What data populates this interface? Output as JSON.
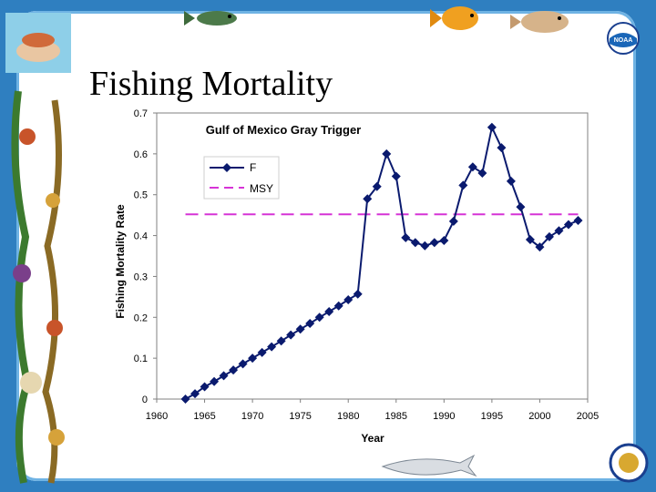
{
  "slide": {
    "title": "Fishing Mortality",
    "colors": {
      "background": "#2f7fc0",
      "panel": "#ffffff",
      "series_f": "#0a1a6e",
      "series_msy": "#d633d6"
    },
    "icons": [
      "noaa-logo-icon",
      "commerce-seal-icon",
      "fish-icon",
      "dolphin-icon",
      "hands-holding-fish-icon"
    ]
  },
  "chart_data": {
    "type": "line",
    "title": "Gulf of Mexico Gray Trigger",
    "xlabel": "Year",
    "ylabel": "Fishing Mortality Rate",
    "xlim": [
      1960,
      2005
    ],
    "ylim": [
      0,
      0.7
    ],
    "xticks": [
      1960,
      1965,
      1970,
      1975,
      1980,
      1985,
      1990,
      1995,
      2000,
      2005
    ],
    "yticks": [
      0,
      0.1,
      0.2,
      0.3,
      0.4,
      0.5,
      0.6,
      0.7
    ],
    "ytick_labels": [
      "0",
      "0.1",
      "0.2",
      "0.3",
      "0.4",
      "0.5",
      "0.6",
      "0.7"
    ],
    "grid": false,
    "legend_position": "top-left",
    "series": [
      {
        "name": "F",
        "style": "line-diamond",
        "x": [
          1963,
          1964,
          1965,
          1966,
          1967,
          1968,
          1969,
          1970,
          1971,
          1972,
          1973,
          1974,
          1975,
          1976,
          1977,
          1978,
          1979,
          1980,
          1981,
          1982,
          1983,
          1984,
          1985,
          1986,
          1987,
          1988,
          1989,
          1990,
          1991,
          1992,
          1993,
          1994,
          1995,
          1996,
          1997,
          1998,
          1999,
          2000,
          2001,
          2002,
          2003,
          2004
        ],
        "values": [
          0.0,
          0.013,
          0.03,
          0.043,
          0.057,
          0.071,
          0.086,
          0.1,
          0.114,
          0.128,
          0.142,
          0.157,
          0.171,
          0.185,
          0.2,
          0.214,
          0.228,
          0.243,
          0.257,
          0.49,
          0.52,
          0.6,
          0.545,
          0.395,
          0.383,
          0.375,
          0.383,
          0.388,
          0.435,
          0.523,
          0.568,
          0.553,
          0.665,
          0.615,
          0.533,
          0.47,
          0.39,
          0.372,
          0.397,
          0.412,
          0.427,
          0.437
        ]
      },
      {
        "name": "MSY",
        "style": "dashed",
        "x": [
          1963,
          2004
        ],
        "values": [
          0.452,
          0.452
        ]
      }
    ]
  }
}
